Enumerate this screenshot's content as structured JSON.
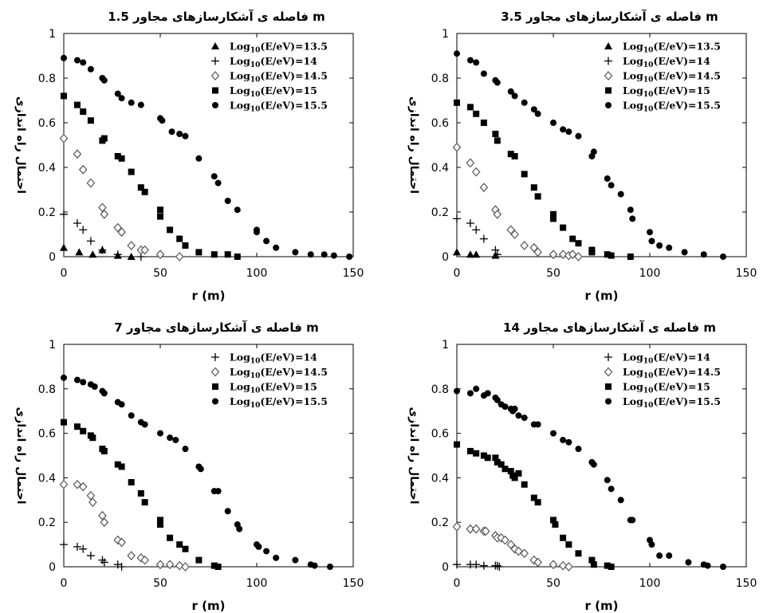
{
  "chart_data": [
    {
      "type": "scatter",
      "title": "فاصله ی آشکارسازهای مجاور 1.5 m",
      "xlabel": "r (m)",
      "ylabel": "احتمال راه اندازی",
      "xlim": [
        0,
        150
      ],
      "ylim": [
        0,
        1
      ],
      "xticks": [
        "0",
        "50",
        "100",
        "150"
      ],
      "yticks": [
        "0",
        "0.2",
        "0.4",
        "0.6",
        "0.8",
        "1"
      ],
      "legend_position": "top-right",
      "grid": false,
      "series": [
        {
          "name": "Log10(E/eV)=13.5",
          "marker": "triangle",
          "x": [
            0,
            8,
            15,
            20,
            28,
            35
          ],
          "y": [
            0.04,
            0.02,
            0.01,
            0.03,
            0.005,
            0.0
          ]
        },
        {
          "name": "Log10(E/eV)=14",
          "marker": "plus",
          "x": [
            0,
            7,
            10,
            14,
            20,
            28,
            40
          ],
          "y": [
            0.19,
            0.15,
            0.12,
            0.07,
            0.03,
            0.01,
            0.0
          ]
        },
        {
          "name": "Log10(E/eV)=14.5",
          "marker": "diamond",
          "x": [
            0,
            7,
            10,
            14,
            20,
            21,
            28,
            30,
            35,
            40,
            42,
            50,
            60
          ],
          "y": [
            0.53,
            0.46,
            0.39,
            0.33,
            0.22,
            0.19,
            0.13,
            0.11,
            0.05,
            0.03,
            0.03,
            0.01,
            0.0
          ]
        },
        {
          "name": "Log10(E/eV)=15",
          "marker": "square",
          "x": [
            0,
            7,
            10,
            14,
            20,
            21,
            28,
            30,
            35,
            40,
            42,
            50,
            50,
            55,
            60,
            63,
            70,
            78,
            85,
            90
          ],
          "y": [
            0.72,
            0.68,
            0.65,
            0.61,
            0.52,
            0.53,
            0.45,
            0.44,
            0.38,
            0.31,
            0.29,
            0.21,
            0.18,
            0.12,
            0.08,
            0.05,
            0.02,
            0.01,
            0.01,
            0.0
          ]
        },
        {
          "name": "Log10(E/eV)=15.5",
          "marker": "circle",
          "x": [
            0,
            7,
            10,
            14,
            20,
            21,
            28,
            30,
            35,
            40,
            50,
            51,
            56,
            60,
            63,
            70,
            78,
            80,
            85,
            90,
            100,
            100,
            105,
            110,
            120,
            128,
            135,
            140,
            148
          ],
          "y": [
            0.89,
            0.88,
            0.87,
            0.84,
            0.8,
            0.79,
            0.73,
            0.71,
            0.69,
            0.68,
            0.62,
            0.61,
            0.56,
            0.55,
            0.54,
            0.44,
            0.36,
            0.33,
            0.25,
            0.21,
            0.12,
            0.11,
            0.07,
            0.04,
            0.02,
            0.01,
            0.01,
            0.005,
            0.0
          ]
        }
      ]
    },
    {
      "type": "scatter",
      "title": "فاصله ی آشکارسازهای مجاور 3.5 m",
      "xlabel": "r (m)",
      "ylabel": "احتمال راه اندازی",
      "xlim": [
        0,
        150
      ],
      "ylim": [
        0,
        1
      ],
      "xticks": [
        "0",
        "50",
        "100",
        "150"
      ],
      "yticks": [
        "0",
        "0.2",
        "0.4",
        "0.6",
        "0.8",
        "1"
      ],
      "legend_position": "top-right",
      "grid": false,
      "series": [
        {
          "name": "Log10(E/eV)=13.5",
          "marker": "triangle",
          "x": [
            0,
            7,
            10,
            20
          ],
          "y": [
            0.02,
            0.01,
            0.01,
            0.005
          ]
        },
        {
          "name": "Log10(E/eV)=14",
          "marker": "plus",
          "x": [
            0,
            7,
            10,
            14,
            20,
            21
          ],
          "y": [
            0.17,
            0.15,
            0.12,
            0.08,
            0.03,
            0.01
          ]
        },
        {
          "name": "Log10(E/eV)=14.5",
          "marker": "diamond",
          "x": [
            0,
            7,
            10,
            14,
            20,
            21,
            28,
            30,
            35,
            40,
            42,
            50,
            55,
            58,
            60,
            63
          ],
          "y": [
            0.49,
            0.42,
            0.38,
            0.31,
            0.21,
            0.19,
            0.12,
            0.1,
            0.05,
            0.04,
            0.02,
            0.01,
            0.01,
            0.005,
            0.01,
            0.0
          ]
        },
        {
          "name": "Log10(E/eV)=15",
          "marker": "square",
          "x": [
            0,
            7,
            10,
            14,
            20,
            21,
            28,
            30,
            35,
            40,
            42,
            50,
            50,
            55,
            60,
            63,
            70,
            70,
            78,
            80,
            90
          ],
          "y": [
            0.69,
            0.67,
            0.64,
            0.6,
            0.55,
            0.52,
            0.46,
            0.45,
            0.37,
            0.31,
            0.27,
            0.19,
            0.17,
            0.13,
            0.08,
            0.06,
            0.03,
            0.02,
            0.01,
            0.005,
            0.0
          ]
        },
        {
          "name": "Log10(E/eV)=15.5",
          "marker": "circle",
          "x": [
            0,
            7,
            10,
            14,
            20,
            21,
            28,
            30,
            35,
            40,
            42,
            50,
            55,
            58,
            63,
            70,
            71,
            78,
            80,
            85,
            90,
            91,
            100,
            101,
            105,
            110,
            118,
            128,
            138
          ],
          "y": [
            0.91,
            0.88,
            0.87,
            0.82,
            0.79,
            0.78,
            0.74,
            0.72,
            0.69,
            0.66,
            0.64,
            0.6,
            0.57,
            0.56,
            0.54,
            0.45,
            0.47,
            0.35,
            0.32,
            0.28,
            0.21,
            0.17,
            0.11,
            0.07,
            0.05,
            0.04,
            0.02,
            0.01,
            0.0
          ]
        }
      ]
    },
    {
      "type": "scatter",
      "title": "فاصله ی آشکارسازهای مجاور 7 m",
      "xlabel": "r (m)",
      "ylabel": "احتمال راه اندازی",
      "xlim": [
        0,
        150
      ],
      "ylim": [
        0,
        1
      ],
      "xticks": [
        "0",
        "50",
        "100",
        "150"
      ],
      "yticks": [
        "0",
        "0.2",
        "0.4",
        "0.6",
        "0.8",
        "1"
      ],
      "legend_position": "top-right",
      "grid": false,
      "series": [
        {
          "name": "Log10(E/eV)=14",
          "marker": "plus",
          "x": [
            0,
            7,
            10,
            14,
            20,
            21,
            28,
            30
          ],
          "y": [
            0.1,
            0.09,
            0.08,
            0.05,
            0.03,
            0.02,
            0.01,
            0.0
          ]
        },
        {
          "name": "Log10(E/eV)=14.5",
          "marker": "diamond",
          "x": [
            0,
            7,
            10,
            14,
            15,
            20,
            21,
            28,
            30,
            35,
            40,
            42,
            50,
            55,
            60,
            63
          ],
          "y": [
            0.37,
            0.37,
            0.36,
            0.32,
            0.29,
            0.23,
            0.2,
            0.12,
            0.11,
            0.05,
            0.04,
            0.03,
            0.01,
            0.01,
            0.005,
            0.0
          ]
        },
        {
          "name": "Log10(E/eV)=15",
          "marker": "square",
          "x": [
            0,
            7,
            10,
            14,
            15,
            20,
            21,
            28,
            30,
            35,
            40,
            42,
            50,
            50,
            55,
            60,
            63,
            70,
            78,
            80
          ],
          "y": [
            0.65,
            0.63,
            0.61,
            0.59,
            0.58,
            0.53,
            0.52,
            0.46,
            0.45,
            0.38,
            0.33,
            0.29,
            0.21,
            0.19,
            0.13,
            0.1,
            0.08,
            0.03,
            0.005,
            0.0
          ]
        },
        {
          "name": "Log10(E/eV)=15.5",
          "marker": "circle",
          "x": [
            0,
            7,
            10,
            14,
            16,
            20,
            21,
            28,
            30,
            35,
            40,
            42,
            50,
            55,
            58,
            63,
            70,
            71,
            78,
            80,
            85,
            90,
            91,
            100,
            101,
            105,
            110,
            120,
            128,
            130,
            138
          ],
          "y": [
            0.85,
            0.84,
            0.83,
            0.82,
            0.81,
            0.79,
            0.78,
            0.74,
            0.73,
            0.68,
            0.65,
            0.64,
            0.6,
            0.58,
            0.57,
            0.53,
            0.45,
            0.44,
            0.34,
            0.34,
            0.25,
            0.19,
            0.17,
            0.1,
            0.09,
            0.07,
            0.04,
            0.03,
            0.01,
            0.005,
            0.0
          ]
        }
      ]
    },
    {
      "type": "scatter",
      "title": "فاصله ی آشکارسازهای مجاور 14 m",
      "xlabel": "r (m)",
      "ylabel": "احتمال راه اندازی",
      "xlim": [
        0,
        150
      ],
      "ylim": [
        0,
        1
      ],
      "xticks": [
        "0",
        "50",
        "100",
        "150"
      ],
      "yticks": [
        "0",
        "0.2",
        "0.4",
        "0.6",
        "0.8",
        "1"
      ],
      "legend_position": "top-right",
      "grid": false,
      "series": [
        {
          "name": "Log10(E/eV)=14",
          "marker": "plus",
          "x": [
            0,
            7,
            10,
            14,
            20,
            21,
            22
          ],
          "y": [
            0.01,
            0.01,
            0.01,
            0.005,
            0.005,
            0.005,
            0.0
          ]
        },
        {
          "name": "Log10(E/eV)=14.5",
          "marker": "diamond",
          "x": [
            0,
            7,
            10,
            14,
            15,
            20,
            21,
            23,
            25,
            28,
            30,
            32,
            35,
            40,
            42,
            50,
            55,
            58
          ],
          "y": [
            0.18,
            0.17,
            0.17,
            0.16,
            0.16,
            0.14,
            0.13,
            0.13,
            0.12,
            0.1,
            0.08,
            0.07,
            0.06,
            0.03,
            0.02,
            0.01,
            0.005,
            0.0
          ]
        },
        {
          "name": "Log10(E/eV)=15",
          "marker": "square",
          "x": [
            0,
            7,
            10,
            14,
            16,
            20,
            21,
            23,
            25,
            28,
            29,
            30,
            32,
            35,
            40,
            42,
            50,
            51,
            55,
            58,
            63,
            70,
            71,
            78,
            80
          ],
          "y": [
            0.55,
            0.52,
            0.51,
            0.5,
            0.49,
            0.49,
            0.47,
            0.46,
            0.44,
            0.43,
            0.41,
            0.4,
            0.42,
            0.37,
            0.31,
            0.29,
            0.21,
            0.19,
            0.13,
            0.1,
            0.06,
            0.03,
            0.01,
            0.005,
            0.0
          ]
        },
        {
          "name": "Log10(E/eV)=15.5",
          "marker": "circle",
          "x": [
            0,
            7,
            10,
            14,
            16,
            20,
            21,
            23,
            25,
            28,
            29,
            30,
            32,
            35,
            40,
            42,
            50,
            55,
            58,
            63,
            70,
            71,
            78,
            80,
            85,
            90,
            91,
            100,
            101,
            105,
            110,
            120,
            128,
            130,
            138
          ],
          "y": [
            0.79,
            0.78,
            0.8,
            0.77,
            0.78,
            0.76,
            0.75,
            0.73,
            0.72,
            0.71,
            0.7,
            0.71,
            0.68,
            0.67,
            0.64,
            0.64,
            0.6,
            0.57,
            0.56,
            0.53,
            0.47,
            0.46,
            0.39,
            0.35,
            0.3,
            0.21,
            0.21,
            0.12,
            0.1,
            0.05,
            0.05,
            0.02,
            0.01,
            0.005,
            0.0
          ]
        }
      ]
    }
  ]
}
